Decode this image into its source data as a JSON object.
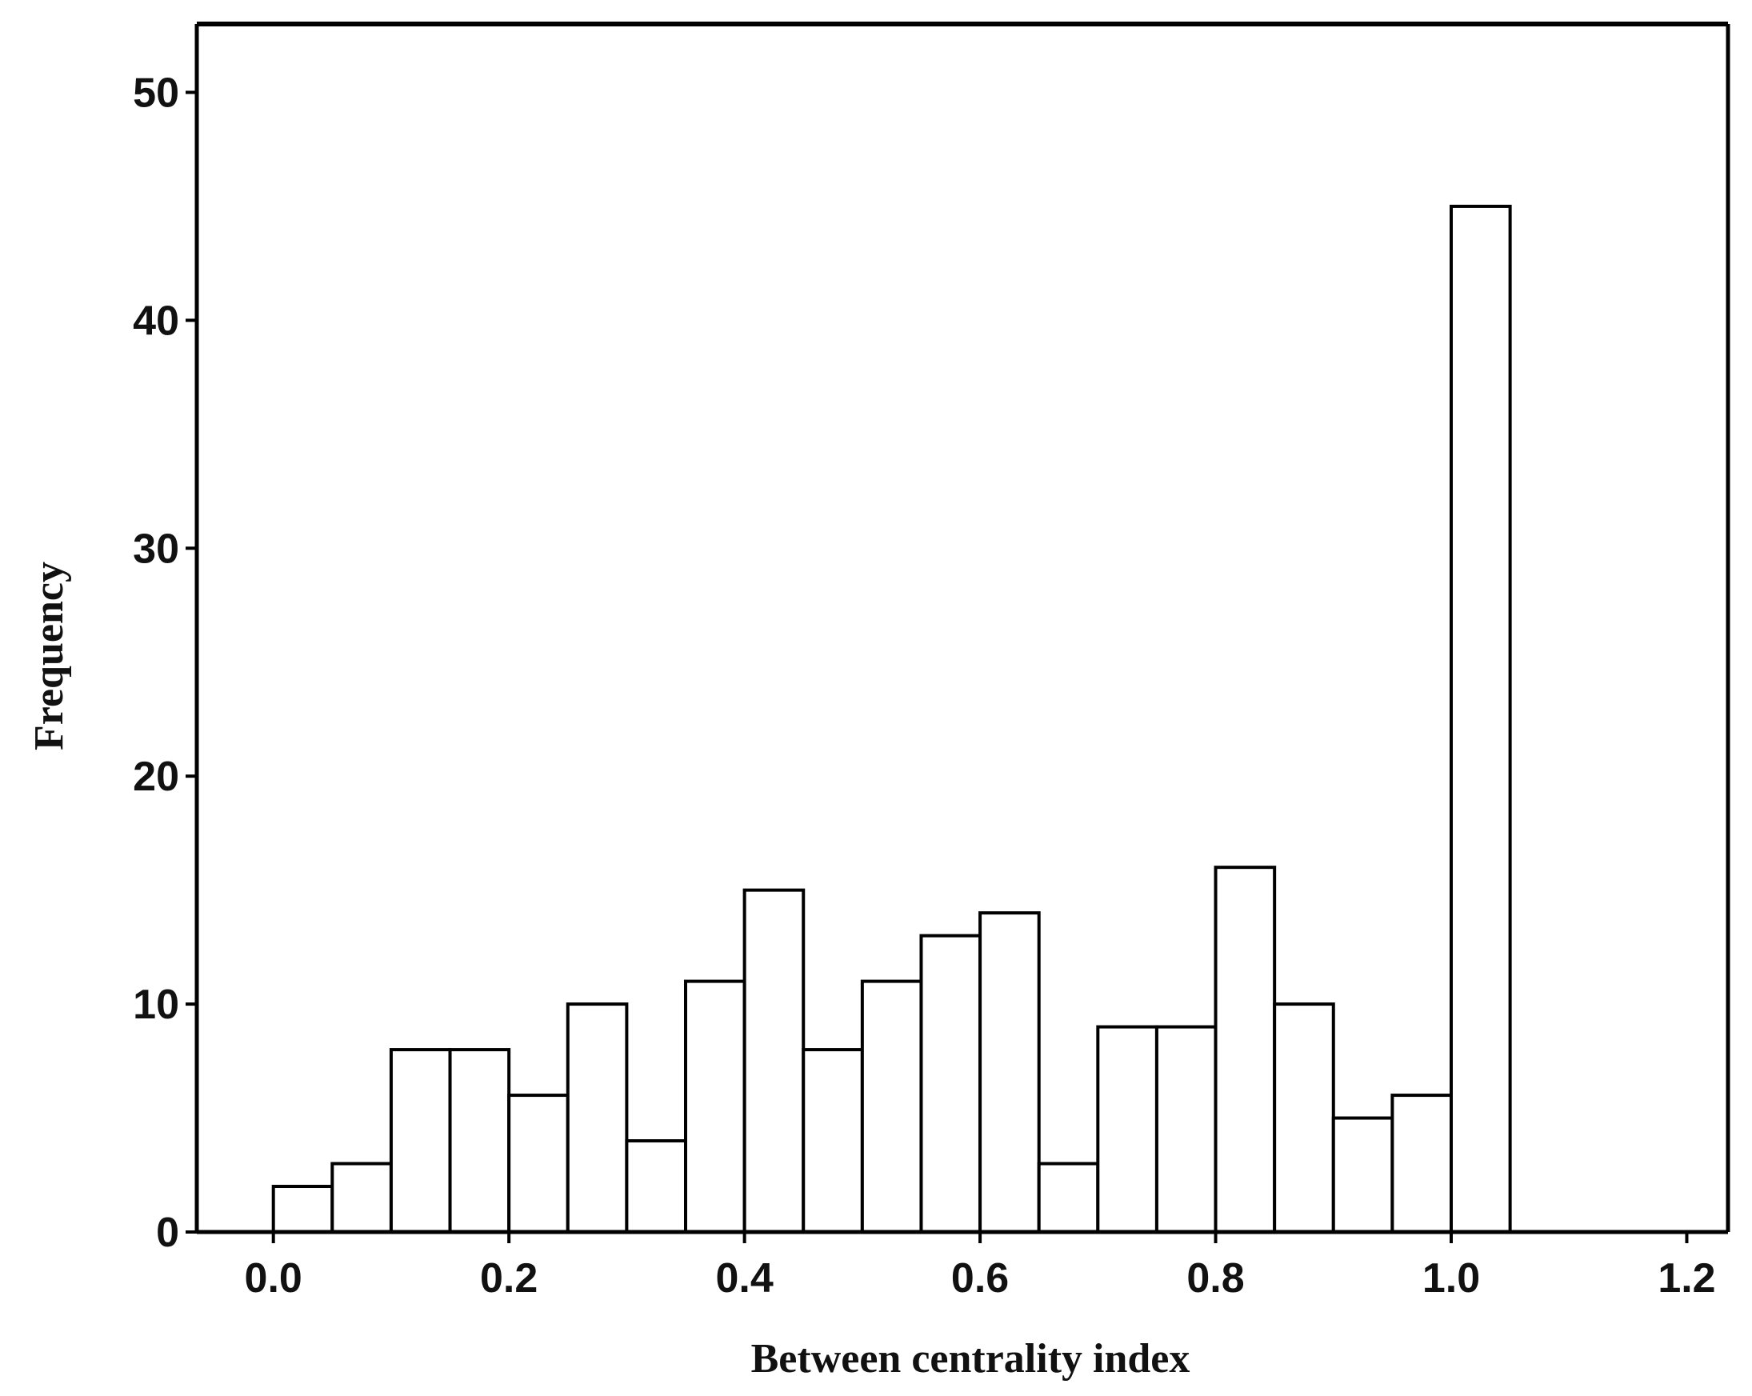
{
  "chart_data": {
    "type": "bar",
    "title": "",
    "xlabel": "Between centrality index",
    "ylabel": "Frequency",
    "bin_width": 0.05,
    "x": [
      0.0,
      0.05,
      0.1,
      0.15,
      0.2,
      0.25,
      0.3,
      0.35,
      0.4,
      0.45,
      0.5,
      0.55,
      0.6,
      0.65,
      0.7,
      0.75,
      0.8,
      0.85,
      0.9,
      0.95,
      1.0
    ],
    "values": [
      2,
      3,
      8,
      8,
      6,
      10,
      4,
      11,
      15,
      8,
      11,
      13,
      14,
      3,
      9,
      9,
      16,
      10,
      5,
      6,
      45
    ],
    "xlim": [
      -0.065,
      1.235
    ],
    "ylim": [
      0,
      53
    ],
    "x_ticks": [
      "0.0",
      "0.2",
      "0.4",
      "0.6",
      "0.8",
      "1.0",
      "1.2"
    ],
    "x_tick_values": [
      0.0,
      0.2,
      0.4,
      0.6,
      0.8,
      1.0,
      1.2
    ],
    "y_ticks": [
      "0",
      "10",
      "20",
      "30",
      "40",
      "50"
    ],
    "y_tick_values": [
      0,
      10,
      20,
      30,
      40,
      50
    ],
    "bar_fill": "#ffffff",
    "bar_stroke": "#000000",
    "grid": false,
    "legend": "none"
  }
}
